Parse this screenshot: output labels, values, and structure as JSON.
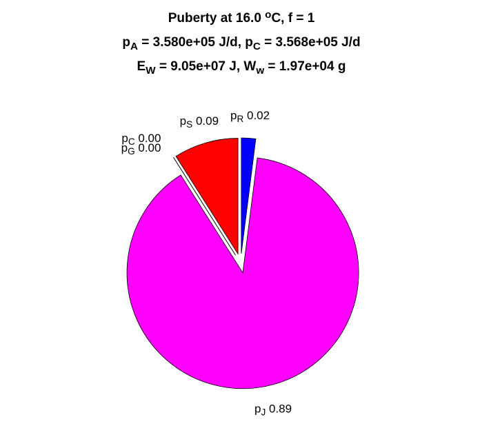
{
  "chart_data": {
    "type": "pie",
    "title": [
      [
        {
          "text": "Puberty at 16.0 "
        },
        {
          "sup": "o"
        },
        {
          "text": "C, f = 1"
        }
      ],
      [
        {
          "text": "p"
        },
        {
          "sub": "A"
        },
        {
          "text": " = 3.580e+05 J/d,  p"
        },
        {
          "sub": "C"
        },
        {
          "text": " = 3.568e+05 J/d"
        }
      ],
      [
        {
          "text": "E"
        },
        {
          "sub": "W"
        },
        {
          "text": " = 9.05e+07 J, W"
        },
        {
          "sub": "w"
        },
        {
          "text": " = 1.97e+04 g"
        }
      ]
    ],
    "categories": [
      [
        {
          "text": "p"
        },
        {
          "sub": "S"
        }
      ],
      [
        {
          "text": "p"
        },
        {
          "sub": "C"
        }
      ],
      [
        {
          "text": "p"
        },
        {
          "sub": "G"
        }
      ],
      [
        {
          "text": "p"
        },
        {
          "sub": "J"
        }
      ],
      [
        {
          "text": "p"
        },
        {
          "sub": "R"
        }
      ]
    ],
    "values": [
      0.09,
      0,
      0,
      0.89,
      0.02
    ],
    "value_labels": [
      "0.09",
      "0.00",
      "0.00",
      "0.89",
      "0.02"
    ],
    "colors": [
      "#ff0000",
      "#00ff00",
      "#ffff00",
      "#ff00ff",
      "#0000ff"
    ],
    "explode": true
  }
}
